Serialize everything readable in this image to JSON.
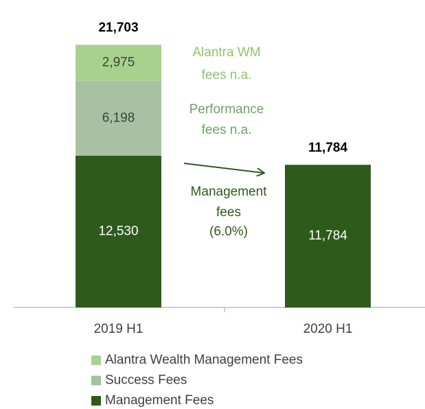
{
  "chart_data": {
    "type": "stacked_bar",
    "categories": [
      "2019 H1",
      "2020 H1"
    ],
    "series": [
      {
        "name": "Management Fees",
        "color": "#2e5a1c",
        "label_color": "#ffffff",
        "values": [
          12530,
          11784
        ],
        "value_labels": [
          "12,530",
          "11,784"
        ]
      },
      {
        "name": "Success Fees",
        "color": "#a7c1a2",
        "label_color": "#404040",
        "values": [
          6198,
          null
        ],
        "value_labels": [
          "6,198",
          null
        ]
      },
      {
        "name": "Alantra Wealth Management Fees",
        "color": "#a9d18e",
        "label_color": "#404040",
        "values": [
          2975,
          null
        ],
        "value_labels": [
          "2,975",
          null
        ]
      }
    ],
    "totals": {
      "values": [
        21703,
        11784
      ],
      "value_labels": [
        "21,703",
        "11,784"
      ]
    },
    "ylim": [
      0,
      23700
    ],
    "annotations": [
      {
        "lines": [
          "Alantra WM",
          "fees n.a."
        ],
        "color": "#92c36c"
      },
      {
        "lines": [
          "Performance",
          "fees n.a."
        ],
        "color": "#72a06a"
      },
      {
        "lines": [
          "Management",
          "fees",
          "(6.0%)"
        ],
        "color": "#2e5a1c"
      }
    ]
  }
}
